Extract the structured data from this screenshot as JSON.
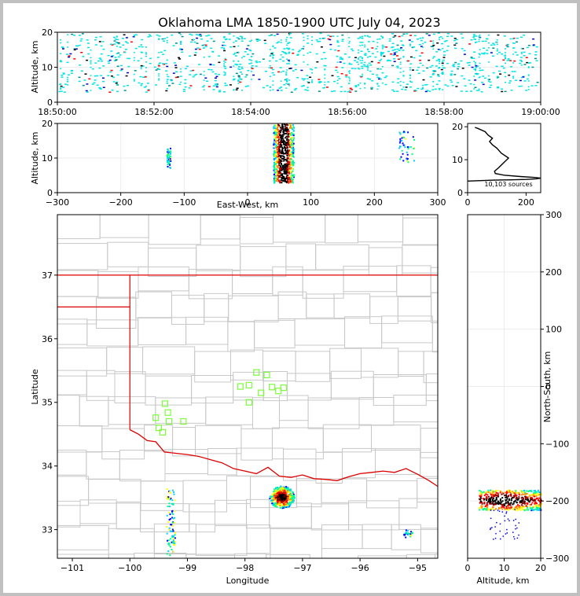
{
  "title": "Oklahoma LMA 1850-1900 UTC July 04, 2023",
  "colors": {
    "state_border": "#dd0000",
    "county_lines": "#c8c8c8",
    "station_marker": "#7cfc3c",
    "time_series_color": "#00e5e5",
    "density_scale": [
      "#0000ff",
      "#00ccff",
      "#00ff88",
      "#ffff00",
      "#ff8800",
      "#ff0000",
      "#880000",
      "#000000"
    ]
  },
  "chart_data": [
    {
      "id": "time_height",
      "type": "scatter",
      "ylabel": "Altitude, km",
      "xlim": [
        "18:50:00",
        "19:00:00"
      ],
      "ylim": [
        0,
        20
      ],
      "x_tick_labels": [
        "18:50:00",
        "18:52:00",
        "18:54:00",
        "18:56:00",
        "18:58:00",
        "19:00:00"
      ],
      "y_ticks": [
        0,
        10,
        20
      ],
      "grid": true,
      "description_of_points": "dense vertical streaks of sources at altitudes 3–20 km across the whole period"
    },
    {
      "id": "ew_height",
      "type": "scatter",
      "xlabel": "East-West, km",
      "ylabel": "Altitude, km",
      "xlim": [
        -300,
        300
      ],
      "ylim": [
        0,
        20
      ],
      "x_ticks": [
        -300,
        -200,
        -100,
        0,
        100,
        200,
        300
      ],
      "y_ticks": [
        0,
        10,
        20
      ],
      "grid": true,
      "clusters": [
        {
          "x_range": [
            -128,
            -122
          ],
          "alt_range": [
            7,
            13
          ]
        },
        {
          "x_range": [
            40,
            72
          ],
          "alt_range": [
            3,
            20
          ]
        },
        {
          "x_range": [
            238,
            262
          ],
          "alt_range": [
            9,
            18
          ]
        }
      ]
    },
    {
      "id": "altitude_histogram",
      "type": "line",
      "annotation": "10,103 sources",
      "xlim": [
        0,
        250
      ],
      "ylim": [
        0,
        21
      ],
      "x_ticks": [
        0,
        200
      ],
      "y_ticks": [
        0,
        10,
        20
      ],
      "x": [
        0,
        90,
        150,
        200,
        235,
        250,
        230,
        180,
        125,
        95,
        92,
        105,
        140,
        115,
        100,
        85,
        75,
        85,
        70,
        60,
        35,
        25
      ],
      "y": [
        3.5,
        3.8,
        3.9,
        4.0,
        4.2,
        4.4,
        4.6,
        4.9,
        5.3,
        5.8,
        6.5,
        7.5,
        10.5,
        12.0,
        13.5,
        14.5,
        15.5,
        16.5,
        17.5,
        18.5,
        19.5,
        19.8
      ]
    },
    {
      "id": "plan_view",
      "type": "scatter",
      "xlabel": "Longitude",
      "ylabel": "Latitude",
      "xlim": [
        -101.26,
        -94.65
      ],
      "ylim": [
        32.55,
        37.95
      ],
      "x_ticks": [
        -101,
        -100,
        -99,
        -98,
        -97,
        -96,
        -95
      ],
      "y_ticks": [
        33,
        34,
        35,
        36,
        37
      ],
      "stations": [
        [
          -97.8,
          35.47
        ],
        [
          -97.62,
          35.43
        ],
        [
          -98.08,
          35.25
        ],
        [
          -97.93,
          35.27
        ],
        [
          -97.72,
          35.15
        ],
        [
          -97.53,
          35.24
        ],
        [
          -97.33,
          35.23
        ],
        [
          -97.42,
          35.18
        ],
        [
          -97.93,
          35.0
        ],
        [
          -99.39,
          34.98
        ],
        [
          -99.34,
          34.84
        ],
        [
          -99.55,
          34.76
        ],
        [
          -99.32,
          34.7
        ],
        [
          -99.07,
          34.7
        ],
        [
          -99.5,
          34.6
        ],
        [
          -99.43,
          34.53
        ]
      ],
      "clusters": [
        {
          "lon": -97.37,
          "lat": 33.52,
          "size": "large"
        },
        {
          "lon": -99.3,
          "lat": 33.1,
          "size": "streak"
        },
        {
          "lon": -95.2,
          "lat": 32.95,
          "size": "small"
        }
      ]
    },
    {
      "id": "ns_height",
      "type": "scatter",
      "xlabel": "Altitude, km",
      "ylabel": "North-South, km",
      "xlim": [
        0,
        20
      ],
      "ylim": [
        -300,
        300
      ],
      "x_ticks": [
        0,
        10,
        20
      ],
      "y_ticks": [
        -300,
        -200,
        -100,
        0,
        100,
        200,
        300
      ],
      "grid": true,
      "clusters": [
        {
          "alt_range": [
            3,
            20
          ],
          "ns_range": [
            -215,
            -180
          ]
        }
      ]
    }
  ]
}
